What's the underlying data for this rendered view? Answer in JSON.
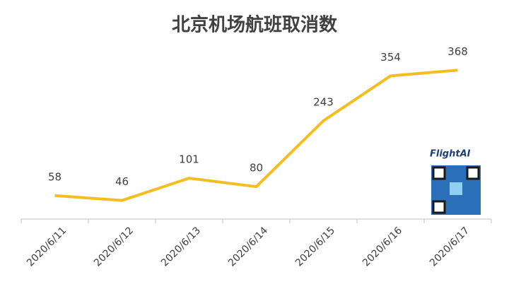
{
  "chart_data": {
    "type": "line",
    "title": "北京机场航班取消数",
    "categories": [
      "2020/6/11",
      "2020/6/12",
      "2020/6/13",
      "2020/6/14",
      "2020/6/15",
      "2020/6/16",
      "2020/6/17"
    ],
    "values": [
      58,
      46,
      101,
      80,
      243,
      354,
      368
    ],
    "color": "#f5bd1f",
    "ylim": [
      0,
      400
    ],
    "grid": false,
    "watermark": "FlightAI"
  }
}
